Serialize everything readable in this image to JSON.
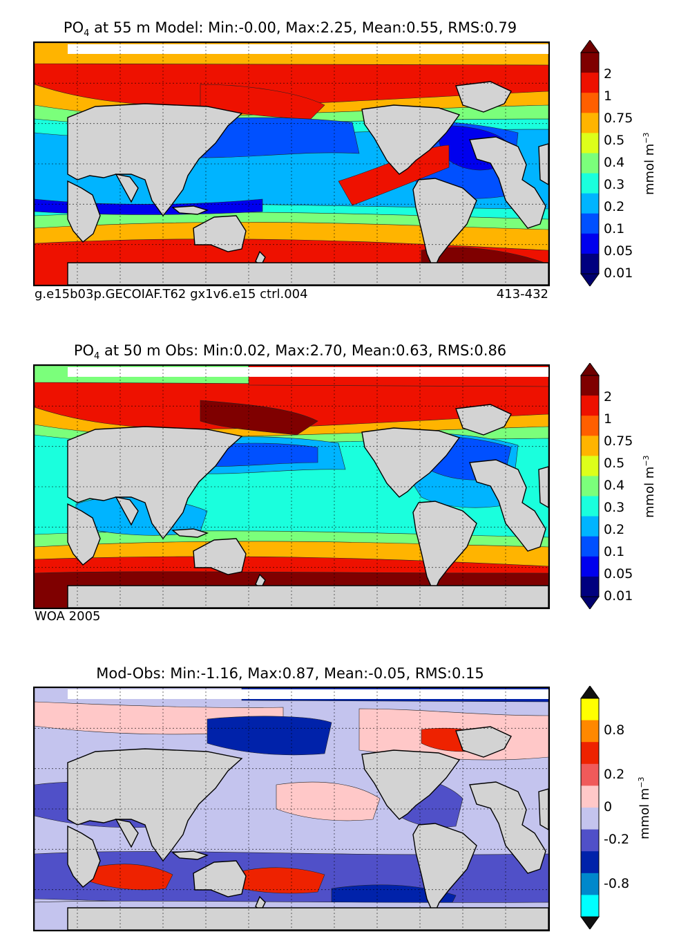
{
  "panels": [
    {
      "title_prefix": "PO",
      "title_sub": "4",
      "title_rest": " at 55 m Model: Min:-0.00, Max:2.25, Mean:0.55, RMS:0.79",
      "caption_left": "g.e15b03p.GECOIAF.T62 gx1v6.e15 ctrl.004",
      "caption_right": "413-432",
      "field": "model"
    },
    {
      "title_prefix": "PO",
      "title_sub": "4",
      "title_rest": " at 50 m Obs: Min:0.02, Max:2.70, Mean:0.63, RMS:0.86",
      "caption_left": "WOA 2005",
      "caption_right": "",
      "field": "obs"
    },
    {
      "title_prefix": "",
      "title_sub": "",
      "title_rest": "Mod-Obs: Min:-1.16, Max:0.87, Mean:-0.05, RMS:0.15",
      "caption_left": "",
      "caption_right": "",
      "field": "diff"
    }
  ],
  "colorbars": {
    "concentration": {
      "unit_base": "mmol m",
      "unit_exp": "−3",
      "labels": [
        "2",
        "1",
        "0.75",
        "0.5",
        "0.4",
        "0.3",
        "0.2",
        "0.1",
        "0.05",
        "0.01"
      ],
      "colors": [
        "#7f0000",
        "#ee1100",
        "#ff5f00",
        "#ffb400",
        "#ddff1a",
        "#7bff7b",
        "#1affdd",
        "#00b4ff",
        "#0050ff",
        "#0000ee",
        "#00007f"
      ],
      "over": "#6e0000",
      "under": "#00006e"
    },
    "difference": {
      "unit_base": "mmol m",
      "unit_exp": "−3",
      "labels": [
        "0.8",
        "0.2",
        "0",
        "-0.2",
        "-0.8"
      ],
      "colors": [
        "#ffff00",
        "#ff8800",
        "#ee2200",
        "#f05a5a",
        "#ffc8c8",
        "#c4c4ee",
        "#5050c8",
        "#0022aa",
        "#0088cc",
        "#00ffff"
      ],
      "over": "#111111",
      "under": "#111111"
    }
  },
  "map_colors": {
    "land": "#d3d3d3",
    "missing": "#ffffff"
  }
}
